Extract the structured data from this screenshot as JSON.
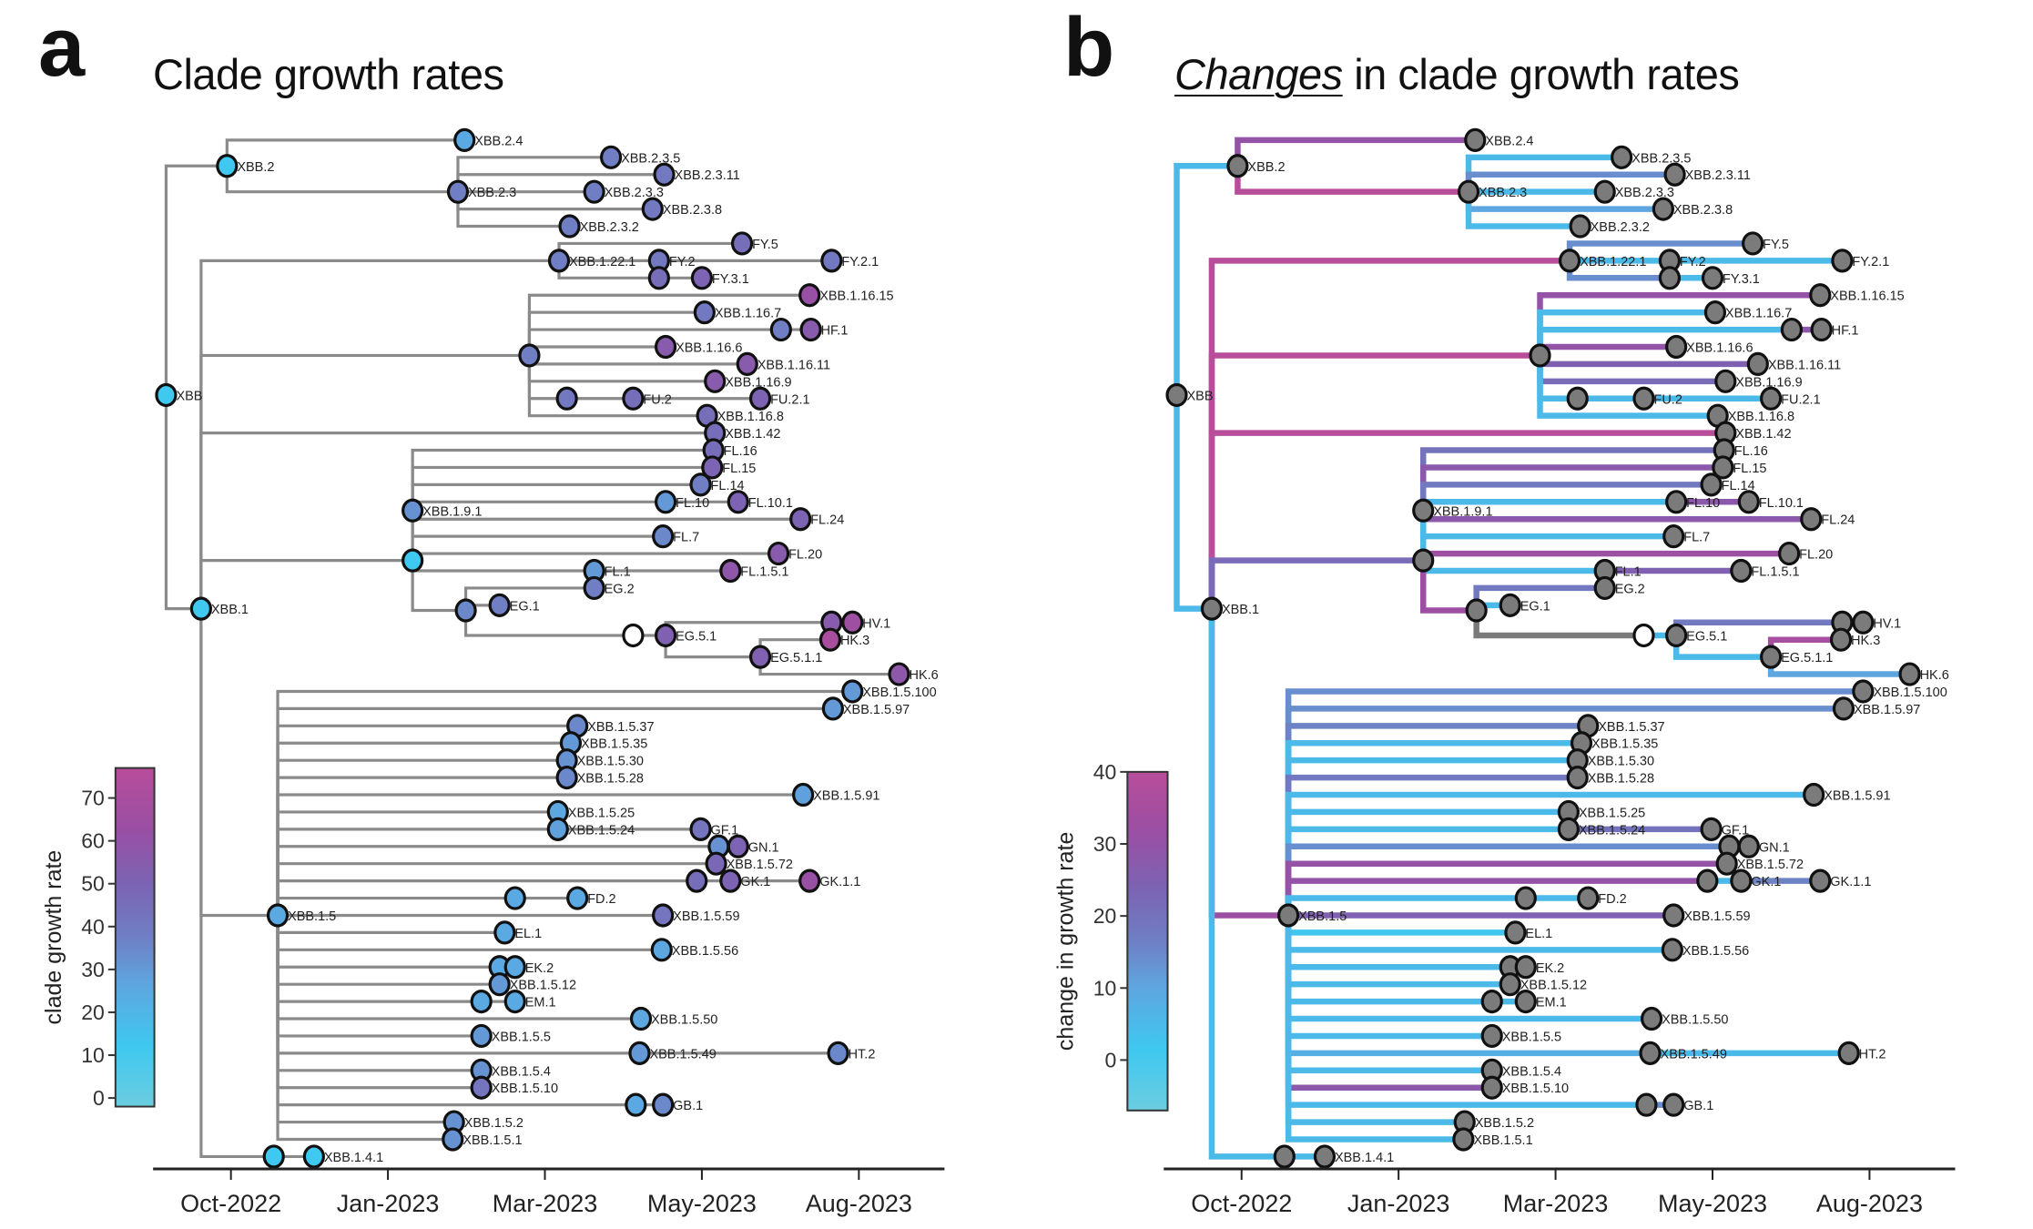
{
  "panels": [
    {
      "letter": "a",
      "title_emph": "",
      "title_rest": "Clade growth rates",
      "colorbar": {
        "label": "clade growth rate",
        "ticks": [
          0,
          10,
          20,
          30,
          40,
          50,
          60,
          70
        ],
        "range": [
          -2,
          77
        ]
      },
      "edge_mode": "gray",
      "node_mode": "value"
    },
    {
      "letter": "b",
      "title_emph": "Changes",
      "title_rest": " in clade growth rates",
      "colorbar": {
        "label": "change in growth rate",
        "ticks": [
          0,
          10,
          20,
          30,
          40
        ],
        "range": [
          -7,
          40
        ]
      },
      "edge_mode": "change",
      "node_mode": "gray"
    }
  ],
  "chart_data": {
    "type": "tree",
    "xaxis": {
      "ticks": [
        "Oct-2022",
        "Jan-2023",
        "Mar-2023",
        "May-2023",
        "Aug-2023"
      ],
      "units": "tick index (0 = Oct-2022)"
    },
    "colormap": [
      "#6ccde0",
      "#3ec8f0",
      "#5ea6e0",
      "#6f7fc4",
      "#7c63b3",
      "#9a4fa4",
      "#b84d9a"
    ],
    "nodes": [
      {
        "id": "XBB",
        "label": "XBB",
        "t": -0.413,
        "row": 14.8,
        "growth": 12,
        "parent": null,
        "change": null
      },
      {
        "id": "XBB.2",
        "label": "XBB.2",
        "t": -0.025,
        "row": 1.5,
        "growth": 12,
        "parent": "XBB",
        "change": 5
      },
      {
        "id": "XBB.2.4",
        "label": "XBB.2.4",
        "t": 1.488,
        "row": 0,
        "growth": 25,
        "parent": "XBB.2",
        "change": 30
      },
      {
        "id": "XBB.2.3",
        "label": "XBB.2.3",
        "t": 1.446,
        "row": 3,
        "growth": 38,
        "parent": "XBB.2",
        "change": 40
      },
      {
        "id": "XBB.2.3.5",
        "label": "XBB.2.3.5",
        "t": 2.421,
        "row": 1,
        "growth": 38,
        "parent": "XBB.2.3",
        "change": 5
      },
      {
        "id": "XBB.2.3.11",
        "label": "XBB.2.3.11",
        "t": 2.76,
        "row": 2,
        "growth": 40,
        "parent": "XBB.2.3",
        "change": 14
      },
      {
        "id": "XBB.2.3.3",
        "label": "XBB.2.3.3",
        "t": 2.314,
        "row": 3,
        "growth": 38,
        "parent": "XBB.2.3",
        "change": 5
      },
      {
        "id": "XBB.2.3.8",
        "label": "XBB.2.3.8",
        "t": 2.686,
        "row": 4,
        "growth": 40,
        "parent": "XBB.2.3",
        "change": 10
      },
      {
        "id": "XBB.2.3.2",
        "label": "XBB.2.3.2",
        "t": 2.157,
        "row": 5,
        "growth": 38,
        "parent": "XBB.2.3",
        "change": 5
      },
      {
        "id": "XBB.1",
        "label": "XBB.1",
        "t": -0.19,
        "row": 27.2,
        "growth": 12,
        "parent": "XBB",
        "change": 5
      },
      {
        "id": "XBB.1.22.1",
        "label": "XBB.1.22.1",
        "t": 2.09,
        "row": 7,
        "growth": 38,
        "parent": "XBB.1",
        "change": 40
      },
      {
        "id": "FY.5",
        "label": "FY.5",
        "t": 3.256,
        "row": 6,
        "growth": 45,
        "parent": "XBB.1.22.1",
        "change": 14
      },
      {
        "id": "FY.2",
        "label": "FY.2",
        "t": 2.727,
        "row": 7,
        "growth": 40,
        "parent": "XBB.1.22.1",
        "change": 5
      },
      {
        "id": "FY.2.1",
        "label": "FY.2.1",
        "t": 3.826,
        "row": 7,
        "growth": 40,
        "parent": "FY.2",
        "change": 5
      },
      {
        "id": "FY.3",
        "label": "",
        "t": 2.727,
        "row": 8,
        "growth": 45,
        "parent": "XBB.1.22.1",
        "change": 14
      },
      {
        "id": "FY.3.1",
        "label": "FY.3.1",
        "t": 3.0,
        "row": 8,
        "growth": 50,
        "parent": "FY.3",
        "change": 5
      },
      {
        "id": "XBB.1.16",
        "label": "",
        "t": 1.901,
        "row": 12.5,
        "growth": 38,
        "parent": "XBB.1",
        "change": 40
      },
      {
        "id": "XBB.1.16.15",
        "label": "XBB.1.16.15",
        "t": 3.686,
        "row": 9,
        "growth": 62,
        "parent": "XBB.1.16",
        "change": 30
      },
      {
        "id": "XBB.1.16.7",
        "label": "XBB.1.16.7",
        "t": 3.017,
        "row": 10,
        "growth": 40,
        "parent": "XBB.1.16",
        "change": 5
      },
      {
        "id": "HF.1p",
        "label": "",
        "t": 3.504,
        "row": 11,
        "growth": 38,
        "parent": "XBB.1.16",
        "change": 5
      },
      {
        "id": "HF.1",
        "label": "HF.1",
        "t": 3.694,
        "row": 11,
        "growth": 55,
        "parent": "HF.1p",
        "change": 28
      },
      {
        "id": "XBB.1.16.6",
        "label": "XBB.1.16.6",
        "t": 2.769,
        "row": 12,
        "growth": 55,
        "parent": "XBB.1.16",
        "change": 30
      },
      {
        "id": "XBB.1.16.11",
        "label": "XBB.1.16.11",
        "t": 3.289,
        "row": 13,
        "growth": 55,
        "parent": "XBB.1.16",
        "change": 25
      },
      {
        "id": "XBB.1.16.9",
        "label": "XBB.1.16.9",
        "t": 3.083,
        "row": 14,
        "growth": 55,
        "parent": "XBB.1.16",
        "change": 22
      },
      {
        "id": "FU",
        "label": "",
        "t": 2.14,
        "row": 15,
        "growth": 40,
        "parent": "XBB.1.16",
        "change": 5
      },
      {
        "id": "FU.2",
        "label": "FU.2",
        "t": 2.562,
        "row": 15,
        "growth": 45,
        "parent": "FU",
        "change": 5
      },
      {
        "id": "FU.2.1",
        "label": "FU.2.1",
        "t": 3.372,
        "row": 15,
        "growth": 50,
        "parent": "FU.2",
        "change": 5
      },
      {
        "id": "XBB.1.16.8",
        "label": "XBB.1.16.8",
        "t": 3.033,
        "row": 16,
        "growth": 45,
        "parent": "XBB.1.16",
        "change": 5
      },
      {
        "id": "XBB.1.42",
        "label": "XBB.1.42",
        "t": 3.083,
        "row": 17,
        "growth": 45,
        "parent": "XBB.1",
        "change": 40
      },
      {
        "id": "XBB.1.9",
        "label": "",
        "t": 1.157,
        "row": 24.4,
        "growth": 12,
        "parent": "XBB.1",
        "change": 22
      },
      {
        "id": "XBB.1.9.1",
        "label": "XBB.1.9.1",
        "t": 1.157,
        "row": 21.5,
        "growth": 32,
        "parent": "XBB.1.9",
        "change": 5
      },
      {
        "id": "FL.16",
        "label": "FL.16",
        "t": 3.074,
        "row": 18,
        "growth": 45,
        "parent": "XBB.1.9.1",
        "change": 20
      },
      {
        "id": "FL.15",
        "label": "FL.15",
        "t": 3.066,
        "row": 19,
        "growth": 50,
        "parent": "XBB.1.9.1",
        "change": 28
      },
      {
        "id": "FL.14",
        "label": "FL.14",
        "t": 2.992,
        "row": 20,
        "growth": 38,
        "parent": "XBB.1.9.1",
        "change": 18
      },
      {
        "id": "FL.10",
        "label": "FL.10",
        "t": 2.769,
        "row": 21,
        "growth": 30,
        "parent": "XBB.1.9.1",
        "change": 5
      },
      {
        "id": "FL.10.1",
        "label": "FL.10.1",
        "t": 3.231,
        "row": 21,
        "growth": 50,
        "parent": "FL.10",
        "change": 28
      },
      {
        "id": "FL.24",
        "label": "FL.24",
        "t": 3.628,
        "row": 22,
        "growth": 50,
        "parent": "XBB.1.9.1",
        "change": 28
      },
      {
        "id": "FL.7",
        "label": "FL.7",
        "t": 2.752,
        "row": 23,
        "growth": 35,
        "parent": "XBB.1.9.1",
        "change": 5
      },
      {
        "id": "FL.20",
        "label": "FL.20",
        "t": 3.488,
        "row": 24,
        "growth": 55,
        "parent": "XBB.1.9",
        "change": 32
      },
      {
        "id": "FL.1",
        "label": "FL.1",
        "t": 2.314,
        "row": 25,
        "growth": 30,
        "parent": "XBB.1.9",
        "change": 5
      },
      {
        "id": "FL.1.5.1",
        "label": "FL.1.5.1",
        "t": 3.182,
        "row": 25,
        "growth": 58,
        "parent": "FL.1",
        "change": 25
      },
      {
        "id": "EG.2",
        "label": "EG.2",
        "t": 2.314,
        "row": 26,
        "growth": 38,
        "parent": "EG",
        "change": 18
      },
      {
        "id": "EG",
        "label": "",
        "t": 1.496,
        "row": 27.3,
        "growth": 35,
        "parent": "XBB.1.9",
        "change": 32
      },
      {
        "id": "EG.1",
        "label": "EG.1",
        "t": 1.711,
        "row": 27,
        "growth": 38,
        "parent": "EG",
        "change": 5
      },
      {
        "id": "EG.5",
        "label": "",
        "t": 2.562,
        "row": 28.75,
        "growth": null,
        "parent": "EG",
        "change": null
      },
      {
        "id": "EG.5.1",
        "label": "EG.5.1",
        "t": 2.769,
        "row": 28.75,
        "growth": 52,
        "parent": "EG.5",
        "change": 5
      },
      {
        "id": "HV.1p",
        "label": "",
        "t": 3.826,
        "row": 28,
        "growth": 55,
        "parent": "EG.5.1",
        "change": 18
      },
      {
        "id": "HV.1",
        "label": "HV.1",
        "t": 3.959,
        "row": 28,
        "growth": 65,
        "parent": "HV.1p",
        "change": 18
      },
      {
        "id": "HK.3",
        "label": "HK.3",
        "t": 3.818,
        "row": 29,
        "growth": 70,
        "parent": "EG.5.1.1",
        "change": 35
      },
      {
        "id": "EG.5.1.1",
        "label": "EG.5.1.1",
        "t": 3.372,
        "row": 30,
        "growth": 52,
        "parent": "EG.5.1",
        "change": 5
      },
      {
        "id": "HK.6",
        "label": "HK.6",
        "t": 4.256,
        "row": 31,
        "growth": 58,
        "parent": "EG.5.1.1",
        "change": 10
      },
      {
        "id": "XBB.1.5",
        "label": "XBB.1.5",
        "t": 0.298,
        "row": 45,
        "growth": 25,
        "parent": "XBB.1",
        "change": 32
      },
      {
        "id": "XBB.1.5.100",
        "label": "XBB.1.5.100",
        "t": 3.959,
        "row": 32,
        "growth": 30,
        "parent": "XBB.1.5",
        "change": 14
      },
      {
        "id": "XBB.1.5.97",
        "label": "XBB.1.5.97",
        "t": 3.835,
        "row": 33,
        "growth": 30,
        "parent": "XBB.1.5",
        "change": 14
      },
      {
        "id": "XBB.1.5.37",
        "label": "XBB.1.5.37",
        "t": 2.207,
        "row": 34,
        "growth": 35,
        "parent": "XBB.1.5",
        "change": 16
      },
      {
        "id": "XBB.1.5.35",
        "label": "XBB.1.5.35",
        "t": 2.165,
        "row": 35,
        "growth": 30,
        "parent": "XBB.1.5",
        "change": 5
      },
      {
        "id": "XBB.1.5.30",
        "label": "XBB.1.5.30",
        "t": 2.14,
        "row": 36,
        "growth": 32,
        "parent": "XBB.1.5",
        "change": 5
      },
      {
        "id": "XBB.1.5.28",
        "label": "XBB.1.5.28",
        "t": 2.14,
        "row": 37,
        "growth": 35,
        "parent": "XBB.1.5",
        "change": 18
      },
      {
        "id": "XBB.1.5.91",
        "label": "XBB.1.5.91",
        "t": 3.645,
        "row": 38,
        "growth": 28,
        "parent": "XBB.1.5",
        "change": 5
      },
      {
        "id": "XBB.1.5.25",
        "label": "XBB.1.5.25",
        "t": 2.083,
        "row": 39,
        "growth": 26,
        "parent": "XBB.1.5",
        "change": 5
      },
      {
        "id": "XBB.1.5.24",
        "label": "XBB.1.5.24",
        "t": 2.083,
        "row": 40,
        "growth": 28,
        "parent": "XBB.1.5",
        "change": 5
      },
      {
        "id": "GF.1",
        "label": "GF.1",
        "t": 2.992,
        "row": 40,
        "growth": 42,
        "parent": "XBB.1.5.24",
        "change": 20
      },
      {
        "id": "GNp",
        "label": "",
        "t": 3.107,
        "row": 41,
        "growth": 32,
        "parent": "XBB.1.5",
        "change": 14
      },
      {
        "id": "GN.1",
        "label": "GN.1",
        "t": 3.231,
        "row": 41,
        "growth": 50,
        "parent": "GNp",
        "change": 5
      },
      {
        "id": "XBB.1.5.72",
        "label": "XBB.1.5.72",
        "t": 3.091,
        "row": 42,
        "growth": 48,
        "parent": "XBB.1.5",
        "change": 30
      },
      {
        "id": "GKp",
        "label": "",
        "t": 2.967,
        "row": 43,
        "growth": 45,
        "parent": "XBB.1.5",
        "change": 30
      },
      {
        "id": "GK.1",
        "label": "GK.1",
        "t": 3.182,
        "row": 43,
        "growth": 50,
        "parent": "GKp",
        "change": 5
      },
      {
        "id": "GK.1.1",
        "label": "GK.1.1",
        "t": 3.686,
        "row": 43,
        "growth": 62,
        "parent": "GK.1",
        "change": 16
      },
      {
        "id": "FDp",
        "label": "",
        "t": 1.81,
        "row": 44,
        "growth": 25,
        "parent": "XBB.1.5",
        "change": 5
      },
      {
        "id": "FD.2",
        "label": "FD.2",
        "t": 2.207,
        "row": 44,
        "growth": 25,
        "parent": "FDp",
        "change": 5
      },
      {
        "id": "XBB.1.5.59",
        "label": "XBB.1.5.59",
        "t": 2.752,
        "row": 45,
        "growth": 42,
        "parent": "XBB.1.5",
        "change": 25
      },
      {
        "id": "EL.1",
        "label": "EL.1",
        "t": 1.744,
        "row": 46,
        "growth": 25,
        "parent": "XBB.1.5",
        "change": 2
      },
      {
        "id": "XBB.1.5.56",
        "label": "XBB.1.5.56",
        "t": 2.744,
        "row": 47,
        "growth": 26,
        "parent": "XBB.1.5",
        "change": 5
      },
      {
        "id": "EKp",
        "label": "",
        "t": 1.711,
        "row": 48,
        "growth": 25,
        "parent": "XBB.1.5",
        "change": 5
      },
      {
        "id": "EK.2",
        "label": "EK.2",
        "t": 1.81,
        "row": 48,
        "growth": 25,
        "parent": "EKp",
        "change": 5
      },
      {
        "id": "XBB.1.5.12",
        "label": "XBB.1.5.12",
        "t": 1.711,
        "row": 49,
        "growth": 30,
        "parent": "XBB.1.5",
        "change": 5
      },
      {
        "id": "EMp",
        "label": "",
        "t": 1.595,
        "row": 50,
        "growth": 25,
        "parent": "XBB.1.5",
        "change": 5
      },
      {
        "id": "EM.1",
        "label": "EM.1",
        "t": 1.81,
        "row": 50,
        "growth": 25,
        "parent": "EMp",
        "change": 5
      },
      {
        "id": "XBB.1.5.50",
        "label": "XBB.1.5.50",
        "t": 2.612,
        "row": 51,
        "growth": 26,
        "parent": "XBB.1.5",
        "change": 5
      },
      {
        "id": "XBB.1.5.5",
        "label": "XBB.1.5.5",
        "t": 1.595,
        "row": 52,
        "growth": 30,
        "parent": "XBB.1.5",
        "change": 5
      },
      {
        "id": "XBB.1.5.49",
        "label": "XBB.1.5.49",
        "t": 2.603,
        "row": 53,
        "growth": 30,
        "parent": "XBB.1.5",
        "change": 8
      },
      {
        "id": "HT.2",
        "label": "HT.2",
        "t": 3.868,
        "row": 53,
        "growth": 35,
        "parent": "XBB.1.5.49",
        "change": 5
      },
      {
        "id": "XBB.1.5.4",
        "label": "XBB.1.5.4",
        "t": 1.595,
        "row": 54,
        "growth": 32,
        "parent": "XBB.1.5",
        "change": 5
      },
      {
        "id": "XBB.1.5.10",
        "label": "XBB.1.5.10",
        "t": 1.595,
        "row": 55,
        "growth": 42,
        "parent": "XBB.1.5",
        "change": 28
      },
      {
        "id": "GBp",
        "label": "",
        "t": 2.579,
        "row": 56,
        "growth": 25,
        "parent": "XBB.1.5",
        "change": 5
      },
      {
        "id": "GB.1",
        "label": "GB.1",
        "t": 2.752,
        "row": 56,
        "growth": 35,
        "parent": "GBp",
        "change": 14
      },
      {
        "id": "XBB.1.5.2",
        "label": "XBB.1.5.2",
        "t": 1.421,
        "row": 57,
        "growth": 32,
        "parent": "XBB.1.5",
        "change": 5
      },
      {
        "id": "XBB.1.5.1",
        "label": "XBB.1.5.1",
        "t": 1.413,
        "row": 58,
        "growth": 32,
        "parent": "XBB.1.5",
        "change": 5
      },
      {
        "id": "XBB.1.4.1p",
        "label": "",
        "t": 0.273,
        "row": 59,
        "growth": 12,
        "parent": "XBB.1",
        "change": 5
      },
      {
        "id": "XBB.1.4.1",
        "label": "XBB.1.4.1",
        "t": 0.529,
        "row": 59,
        "growth": 12,
        "parent": "XBB.1.4.1p",
        "change": 5
      }
    ]
  }
}
